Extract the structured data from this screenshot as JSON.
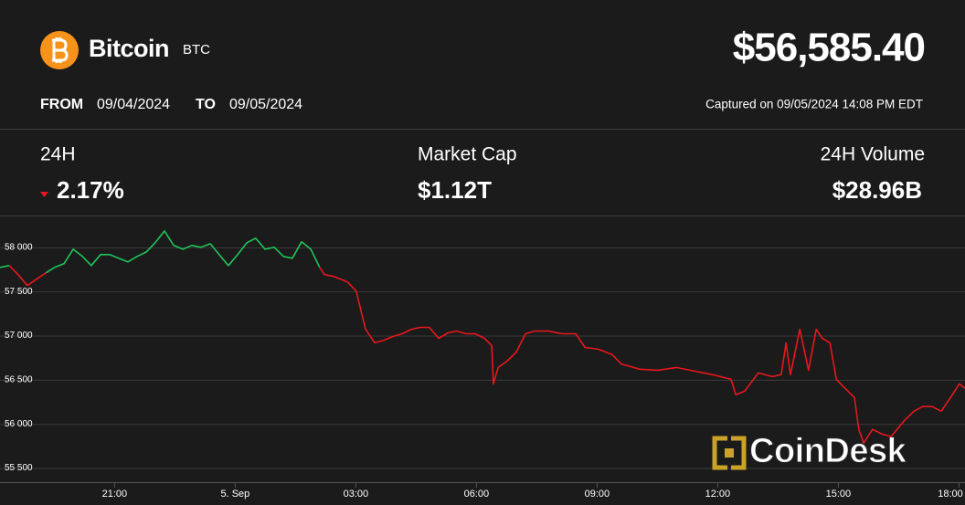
{
  "header": {
    "name": "Bitcoin",
    "ticker": "BTC",
    "price": "$56,585.40",
    "from_label": "FROM",
    "from": "09/04/2024",
    "to_label": "TO",
    "to": "09/05/2024",
    "captured": "Captured on 09/05/2024 14:08 PM EDT"
  },
  "stats": [
    {
      "label": "24H",
      "value": "2.17%",
      "direction": "down"
    },
    {
      "label": "Market Cap",
      "value": "$1.12T"
    },
    {
      "label": "24H Volume",
      "value": "$28.96B"
    }
  ],
  "chart_data": {
    "type": "line",
    "x": [
      -5.85,
      -5.62,
      -5.4,
      -5.17,
      -4.94,
      -4.71,
      -4.49,
      -4.26,
      -4.03,
      -3.8,
      -3.58,
      -3.35,
      -3.12,
      -2.9,
      -2.67,
      -2.44,
      -2.21,
      -1.99,
      -1.76,
      -1.53,
      -1.3,
      -1.08,
      -0.85,
      -0.62,
      -0.4,
      -0.17,
      0.06,
      0.29,
      0.51,
      0.74,
      0.97,
      1.2,
      1.42,
      1.65,
      1.88,
      2.1,
      2.22,
      2.45,
      2.79,
      3.01,
      3.13,
      3.24,
      3.47,
      3.7,
      3.92,
      4.15,
      4.38,
      4.6,
      4.83,
      5.06,
      5.29,
      5.51,
      5.74,
      5.97,
      6.2,
      6.38,
      6.42,
      6.54,
      6.76,
      6.99,
      7.22,
      7.45,
      7.79,
      8.13,
      8.47,
      8.7,
      9.04,
      9.38,
      9.6,
      10.06,
      10.51,
      10.97,
      11.42,
      11.88,
      12.33,
      12.45,
      12.67,
      13.01,
      13.35,
      13.58,
      13.7,
      13.81,
      14.04,
      14.26,
      14.45,
      14.6,
      14.79,
      14.95,
      15.17,
      15.4,
      15.51,
      15.63,
      15.85,
      16.08,
      16.31,
      16.65,
      16.88,
      17.1,
      17.33,
      17.56,
      17.79,
      18.01,
      18.15
    ],
    "series": [
      {
        "values": [
          57773,
          57794,
          57691,
          57567,
          57639,
          57711,
          57773,
          57814,
          57979,
          57897,
          57794,
          57918,
          57918,
          57876,
          57835,
          57897,
          57948,
          58052,
          58186,
          58021,
          57979,
          58021,
          58000,
          58041,
          57918,
          57794,
          57918,
          58052,
          58103,
          57979,
          58000,
          57897,
          57876,
          58062,
          57979,
          57773,
          57691,
          57670,
          57608,
          57505,
          57278,
          57072,
          56918,
          56948,
          56990,
          57021,
          57072,
          57093,
          57093,
          56969,
          57031,
          57052,
          57021,
          57021,
          56969,
          56887,
          56454,
          56639,
          56711,
          56814,
          57021,
          57052,
          57052,
          57021,
          57021,
          56866,
          56845,
          56784,
          56680,
          56619,
          56608,
          56639,
          56598,
          56557,
          56505,
          56330,
          56371,
          56577,
          56536,
          56557,
          56918,
          56557,
          57072,
          56608,
          57072,
          56969,
          56918,
          56505,
          56402,
          56299,
          55938,
          55784,
          55938,
          55887,
          55856,
          56041,
          56144,
          56196,
          56196,
          56144,
          56299,
          56454,
          56402
        ]
      }
    ],
    "color_up": "#1fc35a",
    "color_down": "#e8171d",
    "xlim": [
      -5.85,
      18.15
    ],
    "xticks": [
      {
        "value": -3,
        "label": "21:00"
      },
      {
        "value": 0,
        "label": "5. Sep"
      },
      {
        "value": 3,
        "label": "03:00"
      },
      {
        "value": 6,
        "label": "06:00"
      },
      {
        "value": 9,
        "label": "09:00"
      },
      {
        "value": 12,
        "label": "12:00"
      },
      {
        "value": 15,
        "label": "15:00"
      },
      {
        "value": 18,
        "label": "18:00"
      }
    ],
    "ylim": [
      55340,
      58350
    ],
    "yticks": [
      {
        "value": 55500,
        "label": "55 500"
      },
      {
        "value": 56000,
        "label": "56 000"
      },
      {
        "value": 56500,
        "label": "56 500"
      },
      {
        "value": 57000,
        "label": "57 000"
      },
      {
        "value": 57500,
        "label": "57 500"
      },
      {
        "value": 58000,
        "label": "58 000"
      }
    ],
    "grid": true,
    "watermark": "CoinDesk"
  }
}
